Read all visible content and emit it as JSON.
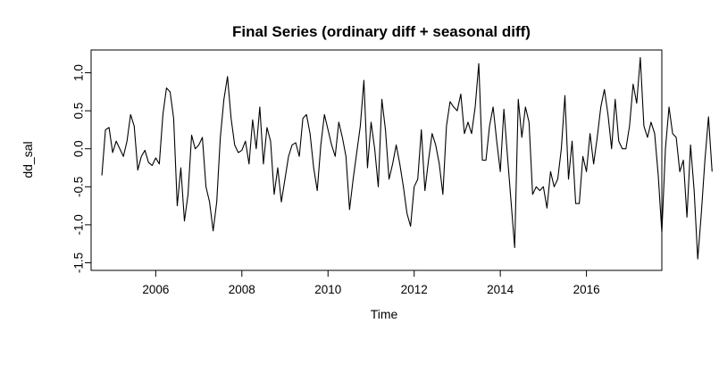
{
  "chart_data": {
    "type": "line",
    "title": "Final Series (ordinary diff + seasonal diff)",
    "xlabel": "Time",
    "ylabel": "dd_sal",
    "xlim": [
      2004.5,
      2017.75
    ],
    "ylim": [
      -1.6,
      1.3
    ],
    "xticks": [
      2006,
      2008,
      2010,
      2012,
      2014,
      2016
    ],
    "xtick_labels": [
      "2006",
      "2008",
      "2010",
      "2012",
      "2014",
      "2016"
    ],
    "yticks": [
      -1.5,
      -1.0,
      -0.5,
      0.0,
      0.5,
      1.0
    ],
    "ytick_labels": [
      "-1.5",
      "-1.0",
      "-0.5",
      "0.0",
      "0.5",
      "1.0"
    ],
    "grid": false,
    "legend": "none",
    "line_color": "#000000",
    "series": [
      {
        "x_start": 2004.75,
        "step": 0.0833333,
        "values": [
          -0.35,
          0.25,
          0.28,
          -0.05,
          0.1,
          0.0,
          -0.1,
          0.1,
          0.45,
          0.3,
          -0.28,
          -0.1,
          -0.02,
          -0.18,
          -0.22,
          -0.12,
          -0.2,
          0.45,
          0.8,
          0.75,
          0.4,
          -0.75,
          -0.25,
          -0.95,
          -0.6,
          0.18,
          0.0,
          0.05,
          0.15,
          -0.5,
          -0.7,
          -1.08,
          -0.7,
          0.15,
          0.65,
          0.95,
          0.4,
          0.05,
          -0.05,
          -0.02,
          0.1,
          -0.2,
          0.38,
          0.0,
          0.55,
          -0.2,
          0.28,
          0.1,
          -0.6,
          -0.25,
          -0.7,
          -0.4,
          -0.1,
          0.05,
          0.08,
          -0.1,
          0.4,
          0.45,
          0.2,
          -0.25,
          -0.55,
          0.05,
          0.45,
          0.25,
          0.05,
          -0.1,
          0.35,
          0.15,
          -0.1,
          -0.8,
          -0.4,
          -0.05,
          0.3,
          0.9,
          -0.25,
          0.35,
          0.0,
          -0.5,
          0.65,
          0.25,
          -0.4,
          -0.2,
          0.05,
          -0.2,
          -0.5,
          -0.85,
          -1.02,
          -0.5,
          -0.4,
          0.25,
          -0.55,
          -0.15,
          0.2,
          0.05,
          -0.2,
          -0.6,
          0.3,
          0.62,
          0.55,
          0.5,
          0.72,
          0.2,
          0.35,
          0.2,
          0.55,
          1.12,
          -0.15,
          -0.15,
          0.3,
          0.55,
          0.1,
          -0.3,
          0.52,
          -0.1,
          -0.7,
          -1.3,
          0.65,
          0.15,
          0.55,
          0.35,
          -0.6,
          -0.5,
          -0.55,
          -0.5,
          -0.78,
          -0.3,
          -0.5,
          -0.4,
          0.0,
          0.7,
          -0.4,
          0.1,
          -0.72,
          -0.72,
          -0.1,
          -0.3,
          0.2,
          -0.2,
          0.15,
          0.55,
          0.78,
          0.45,
          0.0,
          0.65,
          0.1,
          0.0,
          0.0,
          0.3,
          0.85,
          0.6,
          1.2,
          0.3,
          0.15,
          0.35,
          0.2,
          -0.35,
          -1.1,
          0.0,
          0.55,
          0.2,
          0.15,
          -0.3,
          -0.15,
          -0.9,
          0.05,
          -0.55,
          -1.45,
          -0.85,
          -0.15,
          0.42,
          -0.3
        ]
      }
    ]
  }
}
